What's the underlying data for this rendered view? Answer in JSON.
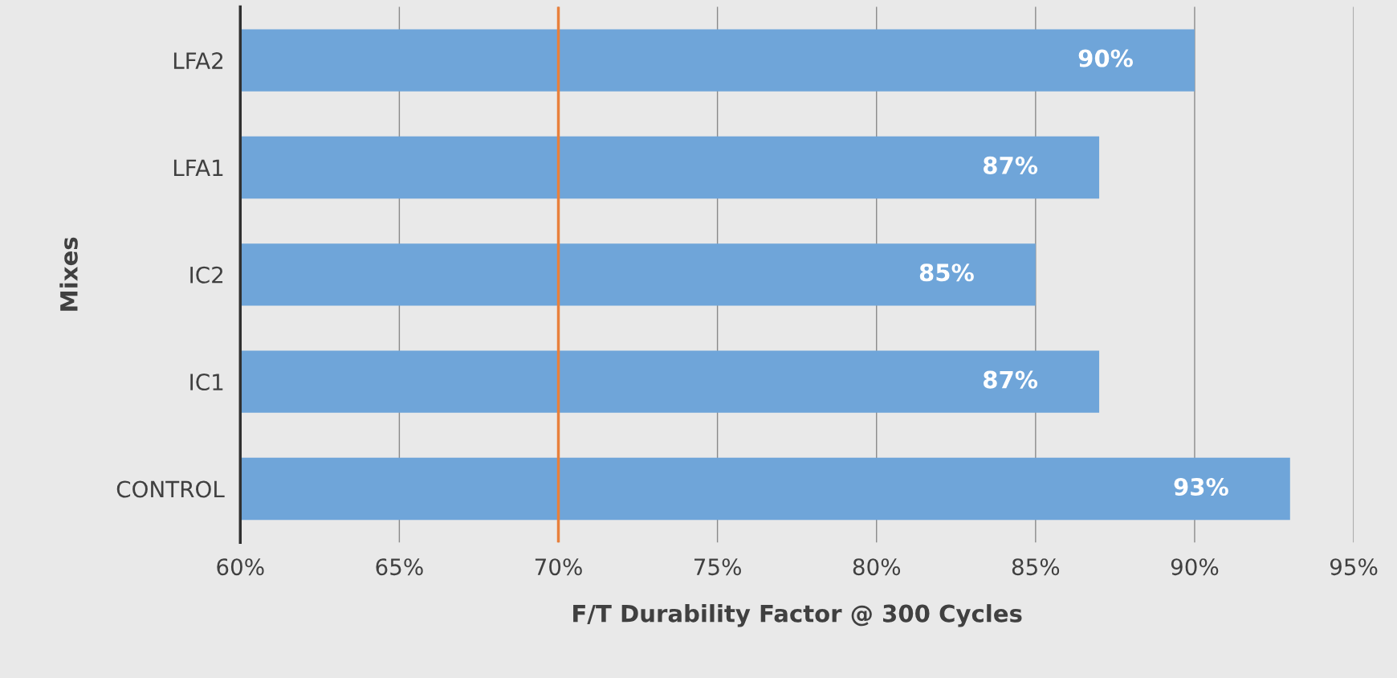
{
  "chart_data": {
    "type": "bar",
    "orientation": "horizontal",
    "xlabel": "F/T Durability Factor @ 300 Cycles",
    "ylabel": "Mixes",
    "categories": [
      "LFA2",
      "LFA1",
      "IC2",
      "IC1",
      "CONTROL"
    ],
    "values": [
      90,
      87,
      85,
      87,
      93
    ],
    "color": "#6fa5d9",
    "value_labels": [
      "90%",
      "87%",
      "85%",
      "87%",
      "93%"
    ],
    "xlim": [
      60,
      95
    ],
    "xticks": [
      {
        "value": 60,
        "label": "60%"
      },
      {
        "value": 65,
        "label": "65%"
      },
      {
        "value": 70,
        "label": "70%"
      },
      {
        "value": 75,
        "label": "75%"
      },
      {
        "value": 80,
        "label": "80%"
      },
      {
        "value": 85,
        "label": "85%"
      },
      {
        "value": 90,
        "label": "90%"
      },
      {
        "value": 95,
        "label": "95%"
      }
    ],
    "ref_lines": [
      {
        "axis": "x",
        "value": 70,
        "color": "#e8803c"
      }
    ],
    "grid": "x"
  }
}
